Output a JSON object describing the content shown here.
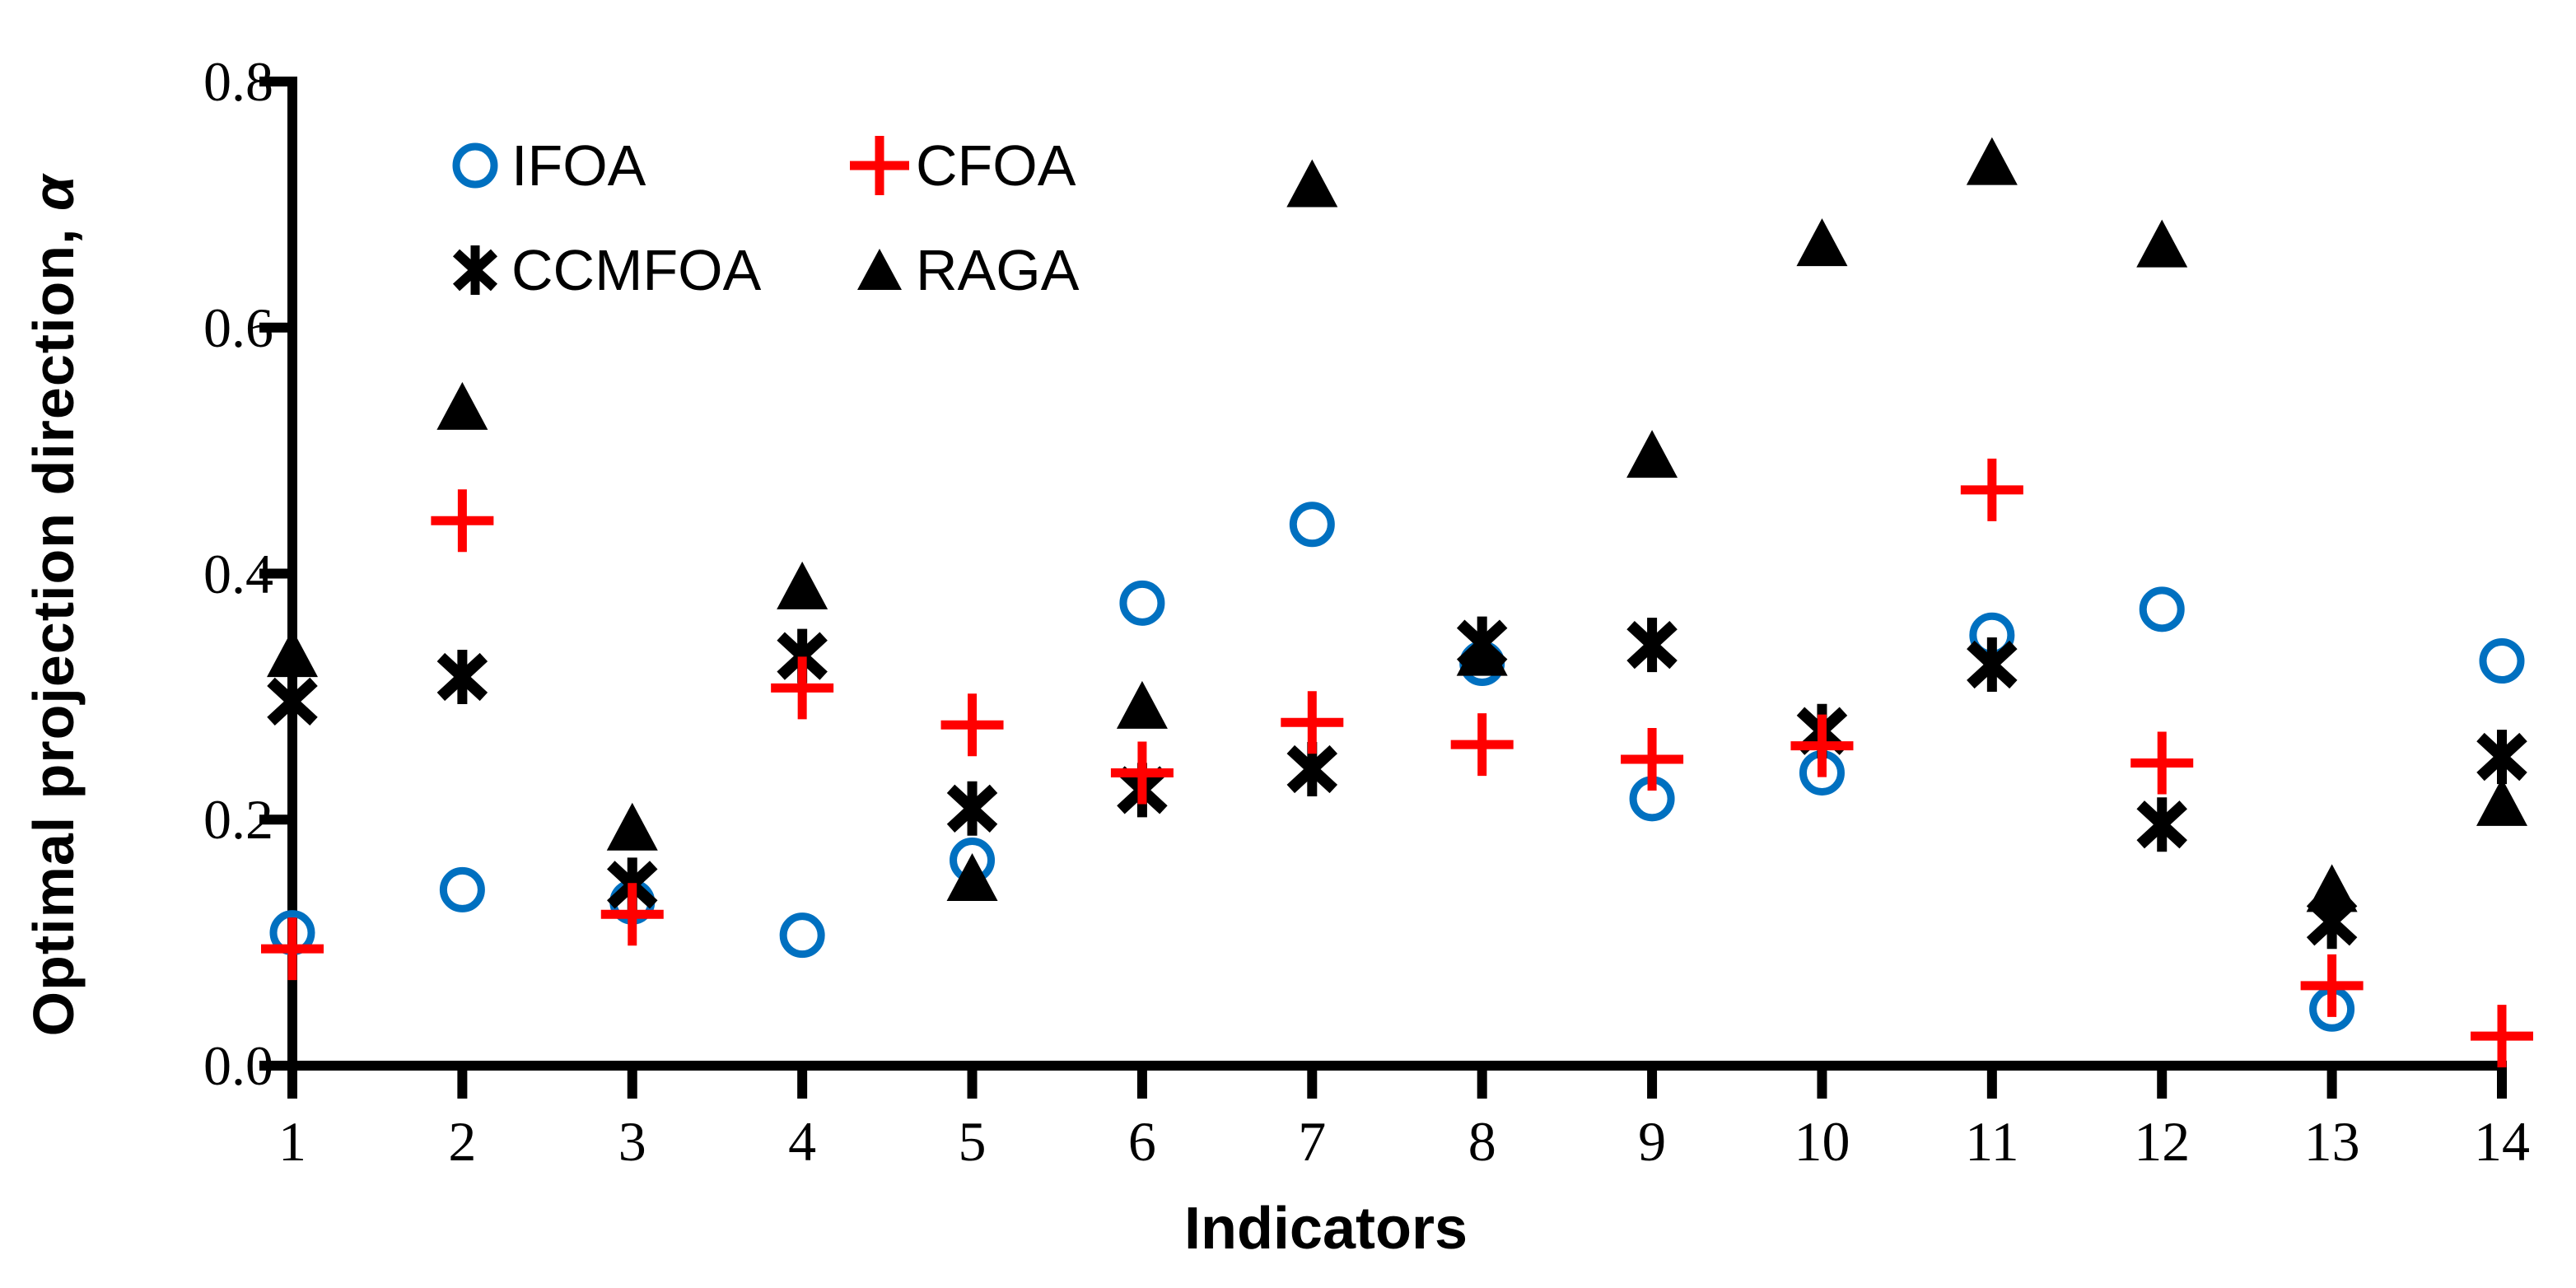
{
  "figure": {
    "background": "#ffffff"
  },
  "axes": {
    "y_title_prefix": "Optimal projection direction, ",
    "y_title_symbol": "α",
    "x_title": "Indicators"
  },
  "legend": {
    "items": [
      {
        "label": "IFOA",
        "marker": "circle",
        "color": "#0070C0"
      },
      {
        "label": "CFOA",
        "marker": "plus",
        "color": "#FF0000"
      },
      {
        "label": "CCMFOA",
        "marker": "asterisk",
        "color": "#000000"
      },
      {
        "label": "RAGA",
        "marker": "triangle",
        "color": "#000000"
      }
    ]
  },
  "chart_data": {
    "type": "scatter",
    "title": "",
    "xlabel": "Indicators",
    "ylabel": "Optimal projection direction, α",
    "x": [
      1,
      2,
      3,
      4,
      5,
      6,
      7,
      8,
      9,
      10,
      11,
      12,
      13,
      14
    ],
    "x_tick_labels": [
      "1",
      "2",
      "3",
      "4",
      "5",
      "6",
      "7",
      "8",
      "9",
      "10",
      "11",
      "12",
      "13",
      "14"
    ],
    "y_tick_labels": [
      "0.0",
      "0.2",
      "0.4",
      "0.6",
      "0.8"
    ],
    "y_tick_values": [
      0.0,
      0.2,
      0.4,
      0.6,
      0.8
    ],
    "ylim": [
      0.0,
      0.8
    ],
    "grid": false,
    "legend_position": "top-left-inside",
    "series": [
      {
        "name": "IFOA",
        "marker": "circle",
        "color": "#0070C0",
        "values": [
          0.108,
          0.143,
          0.133,
          0.106,
          0.167,
          0.376,
          0.44,
          0.327,
          0.217,
          0.238,
          0.35,
          0.371,
          0.046,
          0.329
        ]
      },
      {
        "name": "CFOA",
        "marker": "plus",
        "color": "#FF0000",
        "values": [
          0.095,
          0.443,
          0.123,
          0.307,
          0.277,
          0.238,
          0.279,
          0.261,
          0.249,
          0.26,
          0.468,
          0.246,
          0.065,
          0.024
        ]
      },
      {
        "name": "CCMFOA",
        "marker": "asterisk",
        "color": "#000000",
        "values": [
          0.296,
          0.316,
          0.147,
          0.333,
          0.209,
          0.224,
          0.241,
          0.343,
          0.342,
          0.272,
          0.326,
          0.196,
          0.117,
          0.251
        ]
      },
      {
        "name": "RAGA",
        "marker": "triangle",
        "color": "#000000",
        "values": [
          0.334,
          0.535,
          0.193,
          0.389,
          0.152,
          0.292,
          0.716,
          0.335,
          0.496,
          0.668,
          0.734,
          0.667,
          0.143,
          0.213
        ]
      }
    ]
  }
}
